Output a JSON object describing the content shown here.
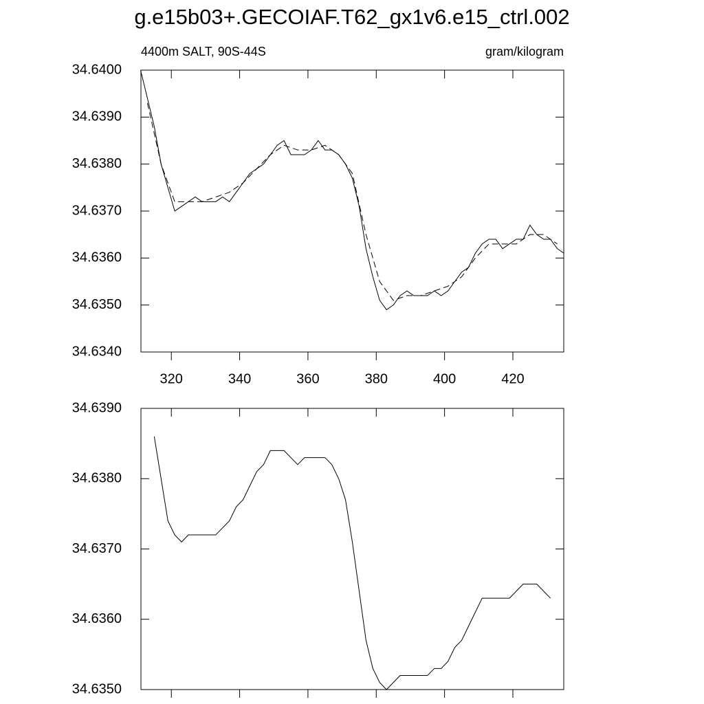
{
  "title": "g.e15b03+.GECOIAF.T62_gx1v6.e15_ctrl.002",
  "chart_data": [
    {
      "type": "line",
      "left_string": "4400m SALT, 90S-44S",
      "right_string": "gram/kilogram",
      "xlim": [
        311.1,
        434.9
      ],
      "xticks": [
        320,
        340,
        360,
        380,
        400,
        420
      ],
      "show_xtick_labels": true,
      "ylim": [
        34.634,
        34.64
      ],
      "yticks": [
        {
          "value": 34.634,
          "label": "34.6340"
        },
        {
          "value": 34.635,
          "label": "34.6350"
        },
        {
          "value": 34.636,
          "label": "34.6360"
        },
        {
          "value": 34.637,
          "label": "34.6370"
        },
        {
          "value": 34.638,
          "label": "34.6380"
        },
        {
          "value": 34.639,
          "label": "34.6390"
        },
        {
          "value": 34.64,
          "label": "34.6400"
        }
      ],
      "series": [
        {
          "color": "#000000",
          "style": "solid",
          "x": [
            311,
            313,
            315,
            317,
            319,
            321,
            323,
            325,
            327,
            329,
            331,
            333,
            335,
            337,
            339,
            341,
            343,
            345,
            347,
            349,
            351,
            353,
            355,
            357,
            359,
            361,
            363,
            365,
            367,
            369,
            371,
            373,
            375,
            377,
            379,
            381,
            383,
            385,
            387,
            389,
            391,
            393,
            395,
            397,
            399,
            401,
            403,
            405,
            407,
            409,
            411,
            413,
            415,
            417,
            419,
            421,
            423,
            425,
            427,
            429,
            431,
            433,
            435
          ],
          "values": [
            34.64,
            34.6394,
            34.6388,
            34.638,
            34.6375,
            34.637,
            34.6371,
            34.6372,
            34.6373,
            34.6372,
            34.6372,
            34.6372,
            34.6373,
            34.6372,
            34.6374,
            34.6376,
            34.6378,
            34.6379,
            34.638,
            34.6382,
            34.6384,
            34.6385,
            34.6382,
            34.6382,
            34.6382,
            34.6383,
            34.6385,
            34.6383,
            34.6383,
            34.6382,
            34.638,
            34.6377,
            34.6371,
            34.6362,
            34.6356,
            34.6351,
            34.6349,
            34.635,
            34.6352,
            34.6353,
            34.6352,
            34.6352,
            34.6352,
            34.6353,
            34.6352,
            34.6353,
            34.6355,
            34.6357,
            34.6358,
            34.6361,
            34.6363,
            34.6364,
            34.6364,
            34.6362,
            34.6363,
            34.6364,
            34.6364,
            34.6367,
            34.6365,
            34.6364,
            34.6364,
            34.6362,
            34.6361
          ]
        },
        {
          "color": "#000000",
          "style": "dashed",
          "x": [
            313,
            317,
            321,
            325,
            329,
            333,
            337,
            341,
            345,
            349,
            353,
            357,
            361,
            365,
            369,
            373,
            377,
            381,
            385,
            389,
            393,
            397,
            401,
            405,
            409,
            413,
            417,
            421,
            425,
            429,
            433
          ],
          "values": [
            34.6393,
            34.638,
            34.6372,
            34.6372,
            34.6372,
            34.6373,
            34.6374,
            34.6376,
            34.6379,
            34.6382,
            34.6384,
            34.6383,
            34.6383,
            34.6384,
            34.6382,
            34.6378,
            34.6365,
            34.6355,
            34.6351,
            34.6352,
            34.6352,
            34.6353,
            34.6354,
            34.6356,
            34.636,
            34.6363,
            34.6363,
            34.6363,
            34.6365,
            34.6365,
            34.6363
          ]
        }
      ]
    },
    {
      "type": "line",
      "xlim": [
        311.1,
        434.9
      ],
      "xticks": [
        320,
        340,
        360,
        380,
        400,
        420
      ],
      "show_xtick_labels": false,
      "ylim": [
        34.635,
        34.639
      ],
      "yticks": [
        {
          "value": 34.635,
          "label": "34.6350"
        },
        {
          "value": 34.636,
          "label": "34.6360"
        },
        {
          "value": 34.637,
          "label": "34.6370"
        },
        {
          "value": 34.638,
          "label": "34.6380"
        },
        {
          "value": 34.639,
          "label": "34.6390"
        }
      ],
      "series": [
        {
          "color": "#000000",
          "style": "solid",
          "x": [
            315,
            317,
            319,
            321,
            323,
            325,
            327,
            329,
            331,
            333,
            335,
            337,
            339,
            341,
            343,
            345,
            347,
            349,
            351,
            353,
            355,
            357,
            359,
            361,
            363,
            365,
            367,
            369,
            371,
            373,
            375,
            377,
            379,
            381,
            383,
            385,
            387,
            389,
            391,
            393,
            395,
            397,
            399,
            401,
            403,
            405,
            407,
            409,
            411,
            413,
            415,
            417,
            419,
            421,
            423,
            425,
            427,
            429,
            431
          ],
          "values": [
            34.6386,
            34.638,
            34.6374,
            34.6372,
            34.6371,
            34.6372,
            34.6372,
            34.6372,
            34.6372,
            34.6372,
            34.6373,
            34.6374,
            34.6376,
            34.6377,
            34.6379,
            34.6381,
            34.6382,
            34.6384,
            34.6384,
            34.6384,
            34.6383,
            34.6382,
            34.6383,
            34.6383,
            34.6383,
            34.6383,
            34.6382,
            34.638,
            34.6377,
            34.6371,
            34.6364,
            34.6357,
            34.6353,
            34.6351,
            34.635,
            34.6351,
            34.6352,
            34.6352,
            34.6352,
            34.6352,
            34.6352,
            34.6353,
            34.6353,
            34.6354,
            34.6356,
            34.6357,
            34.6359,
            34.6361,
            34.6363,
            34.6363,
            34.6363,
            34.6363,
            34.6363,
            34.6364,
            34.6365,
            34.6365,
            34.6365,
            34.6364,
            34.6363
          ]
        }
      ]
    }
  ]
}
